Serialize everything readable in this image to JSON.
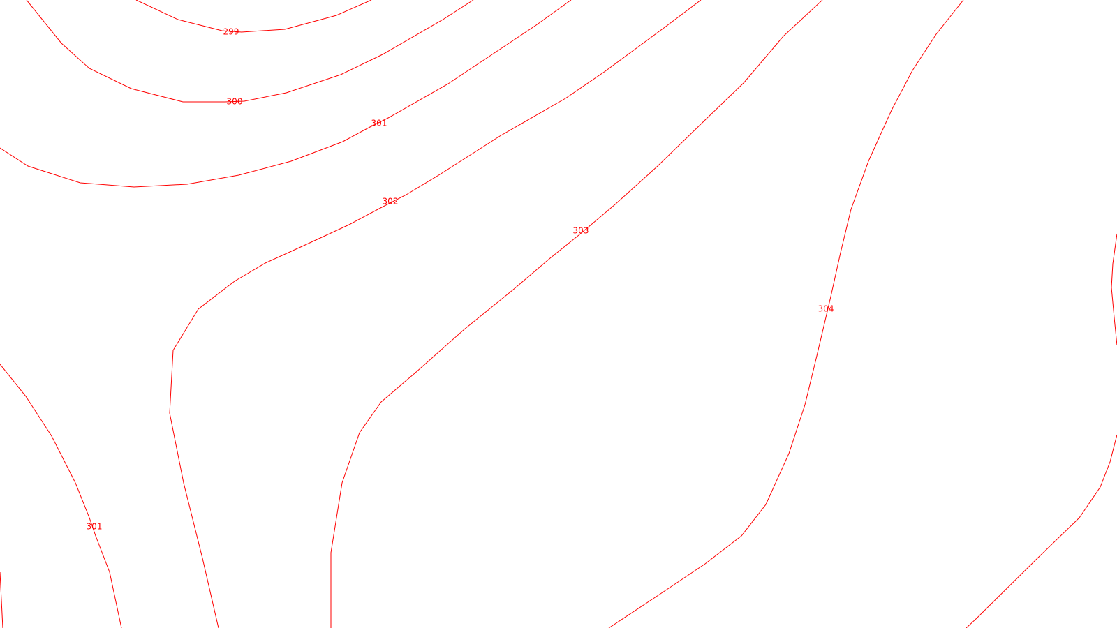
{
  "map": {
    "background_color": "#ffffff",
    "contour_color": "#ff0000",
    "contours": [
      {
        "id": "299",
        "value": 299,
        "label": "299"
      },
      {
        "id": "300",
        "value": 300,
        "label": "300"
      },
      {
        "id": "301-north",
        "value": 301,
        "label": "301"
      },
      {
        "id": "302",
        "value": 302,
        "label": "302"
      },
      {
        "id": "303",
        "value": 303,
        "label": "303"
      },
      {
        "id": "304",
        "value": 304,
        "label": "304"
      },
      {
        "id": "301-southwest",
        "value": 301,
        "label": "301"
      },
      {
        "id": "unlabeled-southwest",
        "value": null,
        "label": ""
      },
      {
        "id": "unlabeled-east",
        "value": null,
        "label": ""
      },
      {
        "id": "unlabeled-west-edge",
        "value": null,
        "label": ""
      }
    ]
  }
}
